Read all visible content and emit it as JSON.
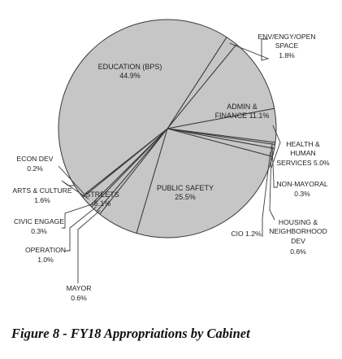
{
  "figure": {
    "caption": "Figure 8 - FY18 Appropriations by Cabinet"
  },
  "colors": {
    "slice_fill": "#c6c6c6",
    "slice_stroke": "#3a3a3a",
    "leader": "#3a3a3a"
  },
  "chart_data": {
    "type": "pie",
    "title": "",
    "slices": [
      {
        "name": "ENV/ENGY/OPEN SPACE",
        "value": 1.8,
        "display": "1.8%"
      },
      {
        "name": "ADMIN & FINANCE",
        "value": 11.1,
        "display": "11.1%"
      },
      {
        "name": "HEALTH & HUMAN SERVICES",
        "value": 5.0,
        "display": "5.0%"
      },
      {
        "name": "NON-MAYORAL",
        "value": 0.3,
        "display": "0.3%"
      },
      {
        "name": "HOUSING & NEIGHBORHOOD DEV",
        "value": 0.6,
        "display": "0.6%"
      },
      {
        "name": "CIO",
        "value": 1.2,
        "display": "1.2%"
      },
      {
        "name": "PUBLIC SAFETY",
        "value": 25.5,
        "display": "25.5%"
      },
      {
        "name": "STREETS",
        "value": 6.1,
        "display": "6.1%"
      },
      {
        "name": "MAYOR",
        "value": 0.6,
        "display": "0.6%"
      },
      {
        "name": "OPERATION",
        "value": 1.0,
        "display": "1.0%"
      },
      {
        "name": "CIVIC ENGAGE",
        "value": 0.3,
        "display": "0.3%"
      },
      {
        "name": "ARTS & CULTURE",
        "value": 1.6,
        "display": "1.6%"
      },
      {
        "name": "ECON DEV",
        "value": 0.2,
        "display": "0.2%"
      },
      {
        "name": "EDUCATION (BPS)",
        "value": 44.9,
        "display": "44.9%"
      }
    ]
  },
  "labels": {
    "education": {
      "name": "EDUCATION (BPS)",
      "value": "44.9%"
    },
    "env": {
      "l1": "ENV/ENGY/OPEN",
      "l2": "SPACE",
      "value": "1.8%"
    },
    "admin": {
      "l1": "ADMIN &",
      "l2": "FINANCE 11.1%"
    },
    "health": {
      "l1": "HEALTH &",
      "l2": "HUMAN",
      "l3": "SERVICES 5.0%"
    },
    "nonmayoral": {
      "name": "NON-MAYORAL",
      "value": "0.3%"
    },
    "housing": {
      "l1": "HOUSING &",
      "l2": "NEIGHBORHOOD",
      "l3": "DEV",
      "value": "0.6%"
    },
    "cio": {
      "text": "CIO 1.2%"
    },
    "public_safety": {
      "name": "PUBLIC SAFETY",
      "value": "25.5%"
    },
    "streets": {
      "name": "STREETS",
      "value": "6.1%"
    },
    "mayor": {
      "name": "MAYOR",
      "value": "0.6%"
    },
    "operation": {
      "name": "OPERATION",
      "value": "1.0%"
    },
    "civic": {
      "name": "CIVIC ENGAGE",
      "value": "0.3%"
    },
    "arts": {
      "name": "ARTS & CULTURE",
      "value": "1.6%"
    },
    "econ": {
      "name": "ECON DEV",
      "value": "0.2%"
    }
  }
}
